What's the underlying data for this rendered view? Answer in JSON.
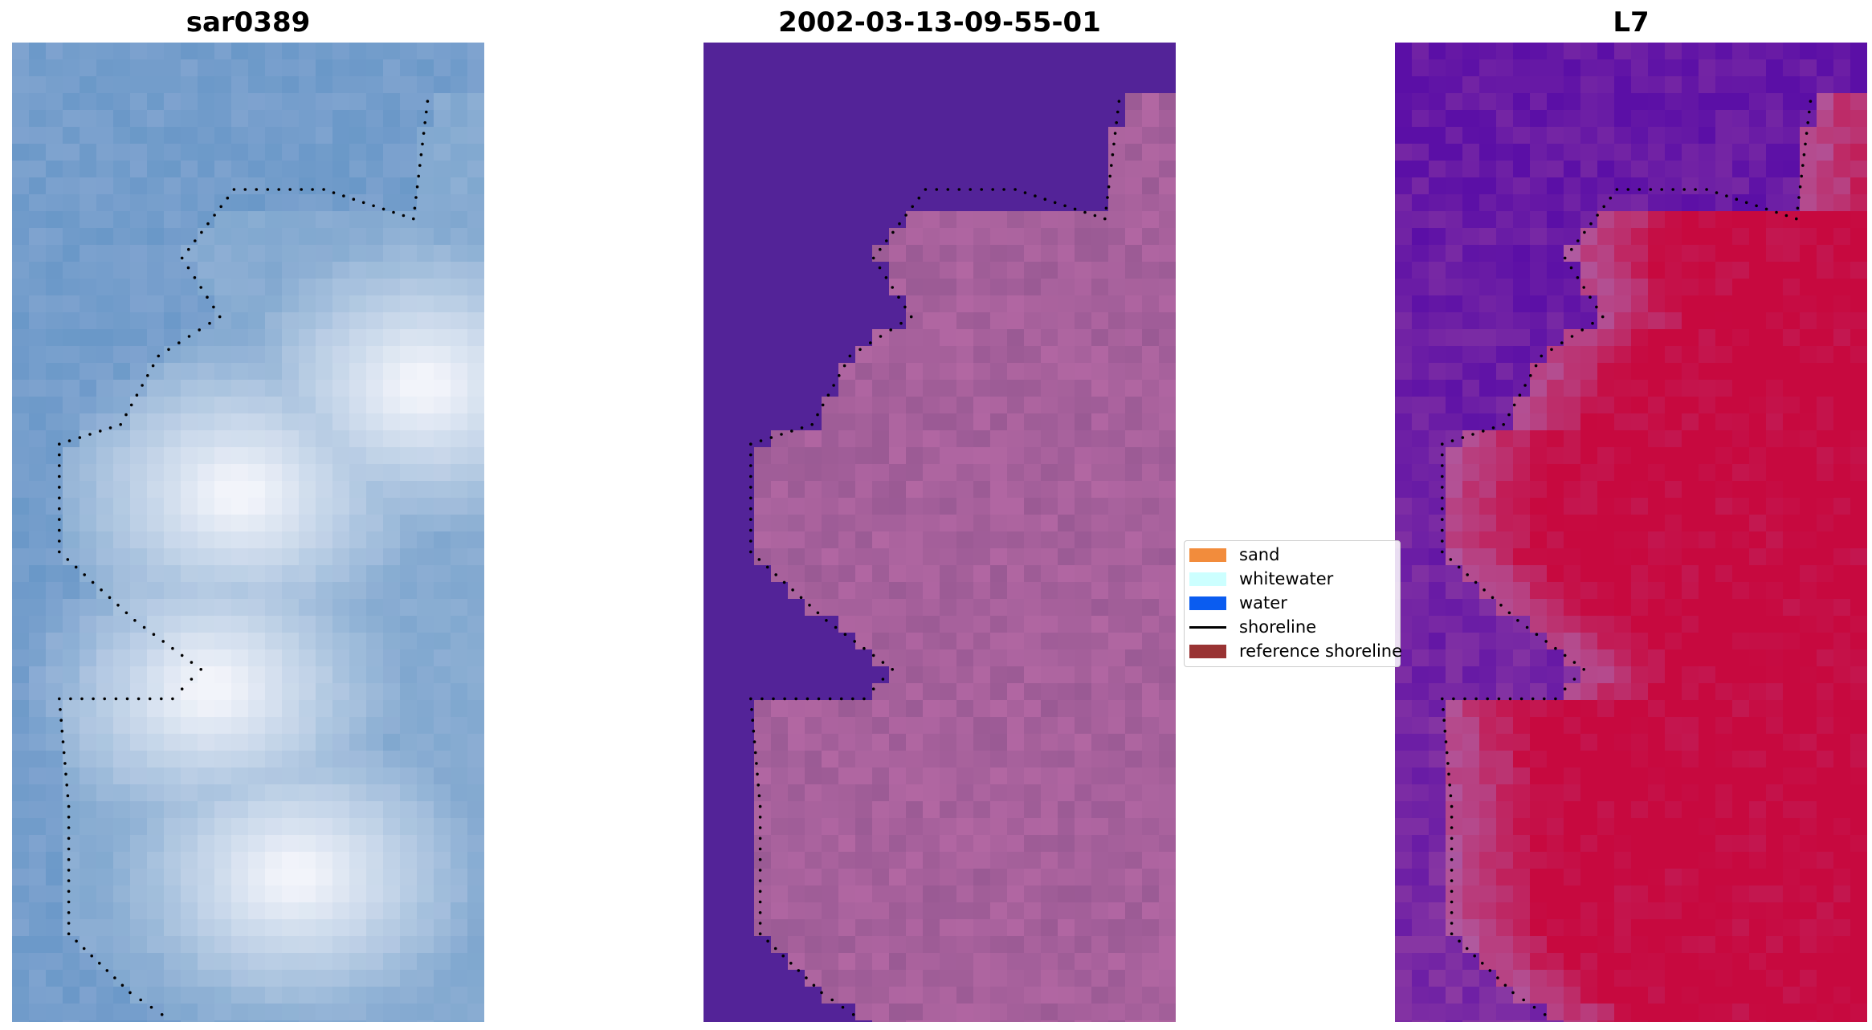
{
  "panels": [
    {
      "title": "sar0389",
      "style": "rgb"
    },
    {
      "title": "2002-03-13-09-55-01",
      "style": "classified"
    },
    {
      "title": "L7",
      "style": "index"
    }
  ],
  "legend": {
    "items": [
      {
        "label": "sand",
        "kind": "patch",
        "color": "#f28c3c"
      },
      {
        "label": "whitewater",
        "kind": "patch",
        "color": "#ccffff"
      },
      {
        "label": "water",
        "kind": "patch",
        "color": "#0a5cf0"
      },
      {
        "label": "shoreline",
        "kind": "line",
        "color": "#000000"
      },
      {
        "label": "reference shoreline",
        "kind": "patch",
        "color": "#993333"
      }
    ]
  },
  "colors": {
    "rgb_base": "#7fa3cf",
    "rgb_bright": "#f2f4fa",
    "classified_water": "#532398",
    "classified_land": "#9a5a94",
    "index_low": "#5b0fa6",
    "index_high": "#c7093f",
    "shoreline": "#000000"
  }
}
